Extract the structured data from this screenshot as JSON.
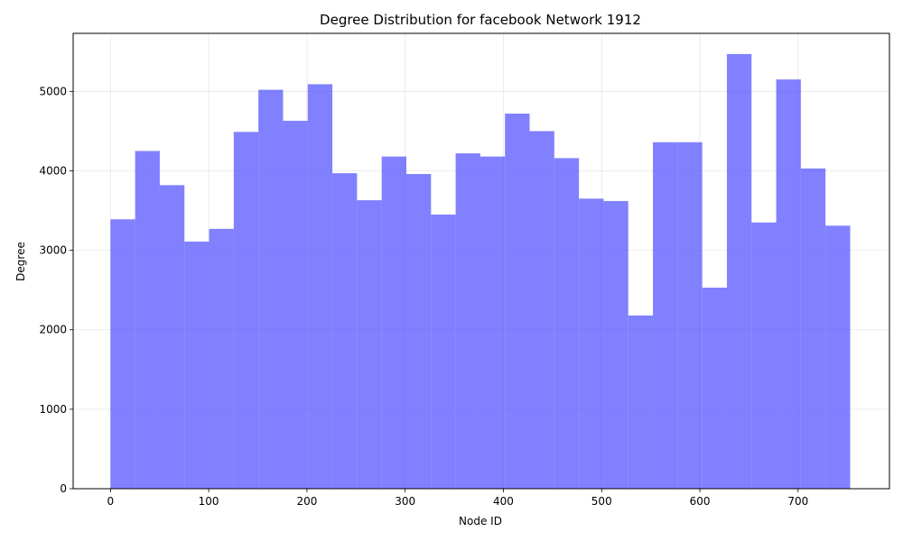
{
  "chart_data": {
    "type": "bar",
    "title": "Degree Distribution for facebook Network 1912",
    "xlabel": "Node ID",
    "ylabel": "Degree",
    "bar_color": "#4c4cff",
    "grid": true,
    "xlim": [
      -38,
      793
    ],
    "ylim": [
      0,
      5730
    ],
    "x_ticks": [
      0,
      100,
      200,
      300,
      400,
      500,
      600,
      700
    ],
    "y_ticks": [
      0,
      1000,
      2000,
      3000,
      4000,
      5000
    ],
    "bin_start": 0,
    "bin_width": 25.1,
    "values": [
      3390,
      4250,
      3820,
      3110,
      3270,
      4490,
      5020,
      4630,
      5090,
      3970,
      3630,
      4180,
      3960,
      3450,
      4220,
      4180,
      4720,
      4500,
      4160,
      3650,
      3620,
      2180,
      4360,
      4360,
      2530,
      5470,
      3350,
      5150,
      4030,
      3310
    ]
  }
}
